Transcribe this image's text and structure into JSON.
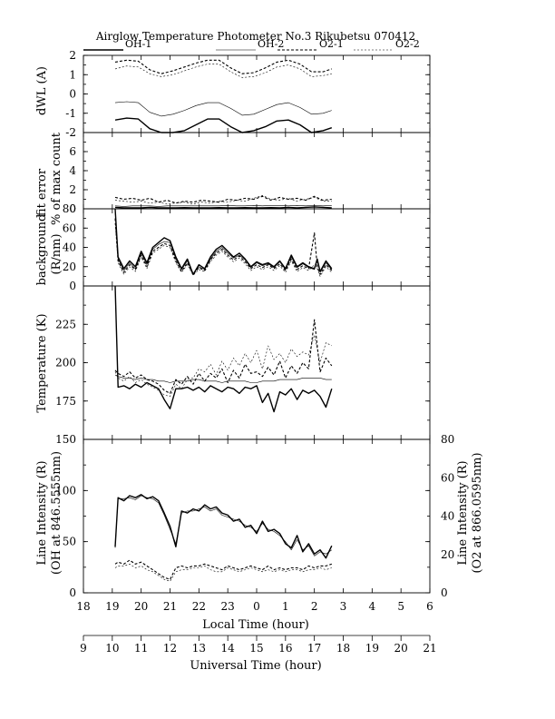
{
  "title": "Airglow Temperature Photometer No.3  Rikubetsu  070412",
  "legend": [
    {
      "name": "OH-1",
      "dash": "",
      "width": 1.4,
      "color": "#000000"
    },
    {
      "name": "OH-2",
      "dash": "",
      "width": 0.6,
      "color": "#000000"
    },
    {
      "name": "O2-1",
      "dash": "3,2",
      "width": 1.1,
      "color": "#000000"
    },
    {
      "name": "O2-2",
      "dash": "2,2",
      "width": 0.6,
      "color": "#000000"
    }
  ],
  "x_local": {
    "label": "Local Time (hour)",
    "ticks": [
      "18",
      "19",
      "20",
      "21",
      "22",
      "23",
      "0",
      "1",
      "2",
      "3",
      "4",
      "5",
      "6"
    ]
  },
  "x_ut": {
    "label": "Universal Time (hour)",
    "ticks": [
      "9",
      "10",
      "11",
      "12",
      "13",
      "14",
      "15",
      "16",
      "17",
      "18",
      "19",
      "20",
      "21"
    ]
  },
  "chart_data": [
    {
      "type": "line",
      "ylabel": "dWL (A)",
      "ylim": [
        -2,
        2
      ],
      "yticks": [
        "2",
        "1",
        "0",
        "-1",
        "-2"
      ],
      "x": [
        19.1,
        19.5,
        19.9,
        20.3,
        20.7,
        21.1,
        21.5,
        21.9,
        22.3,
        22.7,
        23.1,
        23.5,
        23.9,
        0.3,
        0.7,
        1.1,
        1.5,
        1.9,
        2.3,
        2.6
      ],
      "series": [
        {
          "name": "OH-1",
          "values": [
            -1.35,
            -1.25,
            -1.3,
            -1.8,
            -2.0,
            -2.0,
            -1.9,
            -1.6,
            -1.3,
            -1.3,
            -1.7,
            -2.0,
            -1.9,
            -1.7,
            -1.4,
            -1.35,
            -1.6,
            -2.0,
            -1.9,
            -1.75
          ]
        },
        {
          "name": "OH-2",
          "values": [
            -0.45,
            -0.4,
            -0.45,
            -0.95,
            -1.15,
            -1.05,
            -0.85,
            -0.6,
            -0.45,
            -0.45,
            -0.75,
            -1.1,
            -1.05,
            -0.8,
            -0.55,
            -0.45,
            -0.7,
            -1.05,
            -1.0,
            -0.85
          ]
        },
        {
          "name": "O2-1",
          "values": [
            1.65,
            1.75,
            1.7,
            1.25,
            1.05,
            1.2,
            1.4,
            1.6,
            1.75,
            1.75,
            1.35,
            1.05,
            1.1,
            1.35,
            1.65,
            1.75,
            1.55,
            1.15,
            1.15,
            1.3
          ]
        },
        {
          "name": "O2-2",
          "values": [
            1.3,
            1.45,
            1.4,
            1.05,
            0.9,
            1.0,
            1.2,
            1.4,
            1.55,
            1.55,
            1.15,
            0.85,
            0.9,
            1.1,
            1.4,
            1.5,
            1.3,
            0.9,
            0.95,
            1.05
          ]
        }
      ]
    },
    {
      "type": "line",
      "ylabel": "fit error",
      "ylabel2": "% of max count",
      "ylim": [
        0,
        8
      ],
      "yticks": [
        "6",
        "4",
        "2",
        "0"
      ],
      "x": [
        19.1,
        19.4,
        19.7,
        20.0,
        20.3,
        20.6,
        20.9,
        21.2,
        21.5,
        21.8,
        22.1,
        22.4,
        22.7,
        23.0,
        23.3,
        23.6,
        23.9,
        0.2,
        0.5,
        0.8,
        1.1,
        1.4,
        1.7,
        2.0,
        2.3,
        2.6
      ],
      "series": [
        {
          "name": "OH-1",
          "values": [
            0.15,
            0.1,
            0.1,
            0.1,
            0.15,
            0.1,
            0.1,
            0.1,
            0.12,
            0.1,
            0.1,
            0.1,
            0.12,
            0.1,
            0.1,
            0.12,
            0.1,
            0.1,
            0.12,
            0.1,
            0.15,
            0.1,
            0.15,
            0.2,
            0.15,
            0.1
          ]
        },
        {
          "name": "OH-2",
          "values": [
            0.3,
            0.25,
            0.3,
            0.3,
            0.3,
            0.25,
            0.3,
            0.3,
            0.3,
            0.3,
            0.3,
            0.3,
            0.3,
            0.35,
            0.3,
            0.3,
            0.35,
            0.3,
            0.35,
            0.35,
            0.3,
            0.35,
            0.3,
            0.35,
            0.3,
            0.35
          ]
        },
        {
          "name": "O2-1",
          "values": [
            1.2,
            1.0,
            1.1,
            0.9,
            1.1,
            0.7,
            0.9,
            0.6,
            0.8,
            0.7,
            0.9,
            0.8,
            0.7,
            1.0,
            0.9,
            1.1,
            1.0,
            1.3,
            0.9,
            1.2,
            1.0,
            1.1,
            0.9,
            1.3,
            0.9,
            1.0
          ]
        },
        {
          "name": "O2-2",
          "values": [
            0.9,
            0.8,
            0.7,
            0.8,
            0.6,
            0.7,
            0.5,
            0.6,
            0.7,
            0.5,
            0.7,
            0.6,
            0.8,
            0.7,
            0.9,
            0.8,
            1.1,
            1.4,
            1.0,
            0.9,
            1.1,
            0.8,
            1.0,
            1.2,
            0.8,
            0.8
          ]
        }
      ]
    },
    {
      "type": "line",
      "ylabel": "background",
      "ylabel2": "(R/nm)",
      "ylim": [
        0,
        80
      ],
      "yticks": [
        "80",
        "60",
        "40",
        "20",
        "0"
      ],
      "x": [
        19.1,
        19.2,
        19.4,
        19.6,
        19.8,
        20.0,
        20.2,
        20.4,
        20.6,
        20.8,
        21.0,
        21.2,
        21.4,
        21.6,
        21.8,
        22.0,
        22.2,
        22.4,
        22.6,
        22.8,
        23.0,
        23.2,
        23.4,
        23.6,
        23.8,
        0.0,
        0.2,
        0.4,
        0.6,
        0.8,
        1.0,
        1.2,
        1.4,
        1.6,
        1.8,
        2.0,
        2.1,
        2.2,
        2.4,
        2.6
      ],
      "series": [
        {
          "name": "OH-1",
          "values": [
            80,
            30,
            18,
            26,
            20,
            36,
            24,
            40,
            45,
            50,
            47,
            30,
            18,
            28,
            12,
            22,
            18,
            30,
            38,
            42,
            36,
            30,
            34,
            28,
            20,
            25,
            22,
            24,
            20,
            26,
            18,
            32,
            20,
            24,
            20,
            18,
            28,
            15,
            26,
            18
          ]
        },
        {
          "name": "OH-2",
          "values": [
            78,
            28,
            16,
            24,
            18,
            34,
            22,
            38,
            43,
            46,
            45,
            28,
            17,
            26,
            13,
            20,
            17,
            28,
            36,
            40,
            34,
            29,
            32,
            27,
            19,
            24,
            21,
            23,
            19,
            25,
            17,
            30,
            19,
            23,
            19,
            17,
            26,
            14,
            24,
            17
          ]
        },
        {
          "name": "O2-1",
          "values": [
            70,
            26,
            14,
            22,
            17,
            32,
            20,
            36,
            40,
            44,
            42,
            26,
            15,
            24,
            12,
            19,
            16,
            27,
            34,
            38,
            32,
            27,
            31,
            25,
            18,
            22,
            19,
            22,
            18,
            23,
            16,
            28,
            17,
            21,
            18,
            55,
            20,
            12,
            22,
            16
          ]
        },
        {
          "name": "O2-2",
          "values": [
            65,
            24,
            12,
            20,
            15,
            30,
            18,
            34,
            38,
            42,
            40,
            24,
            14,
            22,
            11,
            17,
            15,
            25,
            32,
            36,
            30,
            25,
            29,
            23,
            16,
            20,
            17,
            20,
            16,
            21,
            14,
            26,
            15,
            19,
            16,
            22,
            18,
            10,
            20,
            14
          ]
        }
      ]
    },
    {
      "type": "line",
      "ylabel": "Temperature (K)",
      "ylim": [
        150,
        250
      ],
      "yticks": [
        "225",
        "200",
        "175"
      ],
      "x": [
        19.1,
        19.2,
        19.4,
        19.6,
        19.8,
        20.0,
        20.2,
        20.4,
        20.6,
        20.8,
        21.0,
        21.2,
        21.4,
        21.6,
        21.8,
        22.0,
        22.2,
        22.4,
        22.6,
        22.8,
        23.0,
        23.2,
        23.4,
        23.6,
        23.8,
        0.0,
        0.2,
        0.4,
        0.6,
        0.8,
        1.0,
        1.2,
        1.4,
        1.6,
        1.8,
        2.0,
        2.2,
        2.4,
        2.6
      ],
      "series": [
        {
          "name": "OH-1",
          "values": [
            250,
            184,
            185,
            183,
            186,
            184,
            187,
            185,
            183,
            176,
            170,
            183,
            183,
            184,
            182,
            184,
            181,
            185,
            183,
            181,
            184,
            183,
            180,
            184,
            183,
            185,
            174,
            180,
            168,
            181,
            179,
            183,
            176,
            182,
            180,
            182,
            178,
            171,
            183
          ]
        },
        {
          "name": "OH-2",
          "values": [
            192,
            191,
            190,
            190,
            189,
            190,
            189,
            189,
            188,
            188,
            187,
            188,
            188,
            188,
            189,
            189,
            188,
            188,
            188,
            187,
            188,
            188,
            188,
            188,
            187,
            187,
            188,
            188,
            188,
            189,
            189,
            189,
            189,
            190,
            190,
            190,
            190,
            189,
            189
          ]
        },
        {
          "name": "O2-1",
          "values": [
            195,
            193,
            191,
            194,
            190,
            192,
            189,
            188,
            186,
            182,
            180,
            189,
            186,
            191,
            186,
            193,
            188,
            193,
            190,
            196,
            187,
            195,
            190,
            199,
            193,
            194,
            191,
            197,
            192,
            201,
            190,
            198,
            193,
            200,
            196,
            228,
            194,
            203,
            198
          ]
        },
        {
          "name": "O2-2",
          "values": [
            194,
            190,
            188,
            191,
            187,
            189,
            186,
            184,
            182,
            179,
            178,
            186,
            183,
            189,
            190,
            196,
            194,
            199,
            192,
            201,
            195,
            203,
            198,
            206,
            200,
            208,
            196,
            211,
            202,
            206,
            200,
            209,
            204,
            207,
            205,
            218,
            200,
            213,
            211
          ]
        }
      ]
    },
    {
      "type": "line",
      "ylabel": "Line Intensity (R)",
      "ylabel2": "(OH at 846.5555nm)",
      "y2label": "Line Intensity (R)",
      "y2label2": "(O2 at 866.0595nm)",
      "ylim": [
        0,
        150
      ],
      "y2lim": [
        0,
        80
      ],
      "yticks": [
        "150",
        "100",
        "50",
        "0"
      ],
      "y2ticks": [
        "80",
        "60",
        "40",
        "20",
        "0"
      ],
      "x": [
        19.1,
        19.2,
        19.4,
        19.6,
        19.8,
        20.0,
        20.2,
        20.4,
        20.6,
        20.8,
        21.0,
        21.2,
        21.4,
        21.6,
        21.8,
        22.0,
        22.2,
        22.4,
        22.6,
        22.8,
        23.0,
        23.2,
        23.4,
        23.6,
        23.8,
        0.0,
        0.2,
        0.4,
        0.6,
        0.8,
        1.0,
        1.2,
        1.4,
        1.6,
        1.8,
        2.0,
        2.2,
        2.4,
        2.6
      ],
      "series": [
        {
          "name": "OH-1",
          "values": [
            45,
            93,
            90,
            95,
            93,
            96,
            92,
            94,
            90,
            78,
            65,
            45,
            80,
            78,
            82,
            80,
            86,
            82,
            84,
            78,
            76,
            70,
            72,
            64,
            66,
            58,
            70,
            60,
            62,
            58,
            48,
            44,
            56,
            40,
            48,
            38,
            42,
            34,
            46
          ]
        },
        {
          "name": "OH-2",
          "values": [
            44,
            92,
            92,
            93,
            91,
            95,
            93,
            92,
            88,
            76,
            62,
            48,
            78,
            80,
            80,
            82,
            84,
            80,
            82,
            76,
            74,
            72,
            70,
            66,
            64,
            60,
            68,
            62,
            60,
            56,
            50,
            42,
            52,
            42,
            46,
            36,
            40,
            38,
            42
          ]
        },
        {
          "name": "O2-1",
          "values": [
            15,
            16,
            15,
            17,
            15,
            16,
            14,
            12,
            10,
            8,
            7,
            13,
            14,
            13,
            14,
            14,
            15,
            14,
            13,
            12,
            14,
            13,
            12,
            13,
            14,
            13,
            12,
            14,
            12,
            13,
            12,
            13,
            13,
            12,
            14,
            13,
            14,
            14,
            15
          ]
        },
        {
          "name": "O2-2",
          "values": [
            13,
            14,
            14,
            15,
            13,
            14,
            12,
            11,
            9,
            7,
            6,
            11,
            12,
            12,
            13,
            13,
            14,
            12,
            11,
            11,
            13,
            12,
            11,
            12,
            13,
            12,
            11,
            12,
            11,
            12,
            11,
            12,
            12,
            11,
            12,
            12,
            13,
            12,
            13
          ]
        }
      ]
    }
  ]
}
